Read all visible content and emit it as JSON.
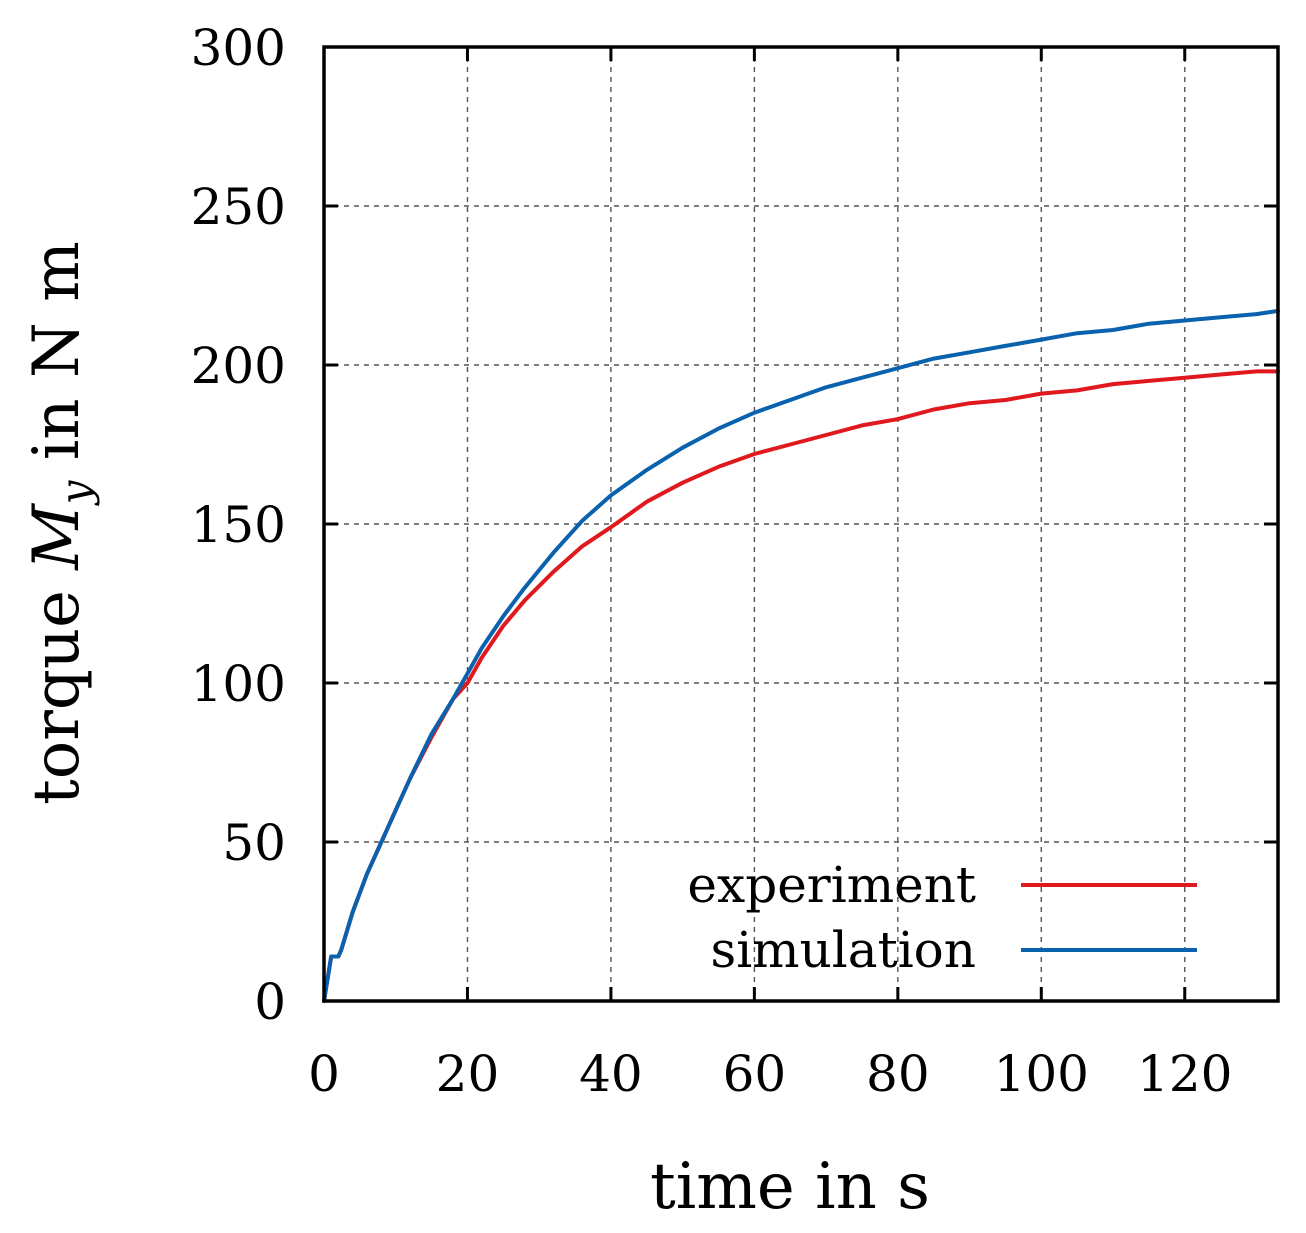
{
  "chart_data": {
    "type": "line",
    "title": "",
    "xlabel": "time in s",
    "ylabel": {
      "prefix": "torque ",
      "symbol": "M",
      "subscript": "y",
      "suffix": " in N m"
    },
    "xlim": [
      0,
      133
    ],
    "ylim": [
      0,
      300
    ],
    "x_ticks": [
      0,
      20,
      40,
      60,
      80,
      100,
      120
    ],
    "y_ticks": [
      0,
      50,
      100,
      150,
      200,
      250,
      300
    ],
    "grid": true,
    "legend_position": "bottom-right",
    "series": [
      {
        "name": "experiment",
        "color": "#e0191f",
        "x": [
          0,
          1,
          2,
          2.4,
          4,
          6,
          8,
          10,
          12,
          15,
          18,
          20,
          22,
          25,
          28,
          32,
          36,
          40,
          45,
          50,
          55,
          60,
          65,
          70,
          75,
          80,
          85,
          90,
          95,
          100,
          105,
          110,
          115,
          120,
          125,
          130,
          133
        ],
        "values": [
          0,
          14,
          14,
          16,
          28,
          40,
          50,
          60,
          70,
          83,
          95,
          100,
          108,
          118,
          126,
          135,
          143,
          149,
          157,
          163,
          168,
          172,
          175,
          178,
          181,
          183,
          186,
          188,
          189,
          191,
          192,
          194,
          195,
          196,
          197,
          198,
          198
        ]
      },
      {
        "name": "simulation",
        "color": "#0a61ad",
        "x": [
          0,
          1,
          2,
          2.4,
          4,
          6,
          8,
          10,
          12,
          15,
          18,
          20,
          22,
          25,
          28,
          32,
          36,
          40,
          45,
          50,
          55,
          60,
          65,
          70,
          75,
          80,
          85,
          90,
          95,
          100,
          105,
          110,
          115,
          120,
          125,
          130,
          133
        ],
        "values": [
          0,
          14,
          14,
          16,
          28,
          40,
          50,
          60,
          70,
          84,
          95,
          103,
          111,
          121,
          130,
          141,
          151,
          159,
          167,
          174,
          180,
          185,
          189,
          193,
          196,
          199,
          202,
          204,
          206,
          208,
          210,
          211,
          213,
          214,
          215,
          216,
          217
        ]
      }
    ]
  }
}
